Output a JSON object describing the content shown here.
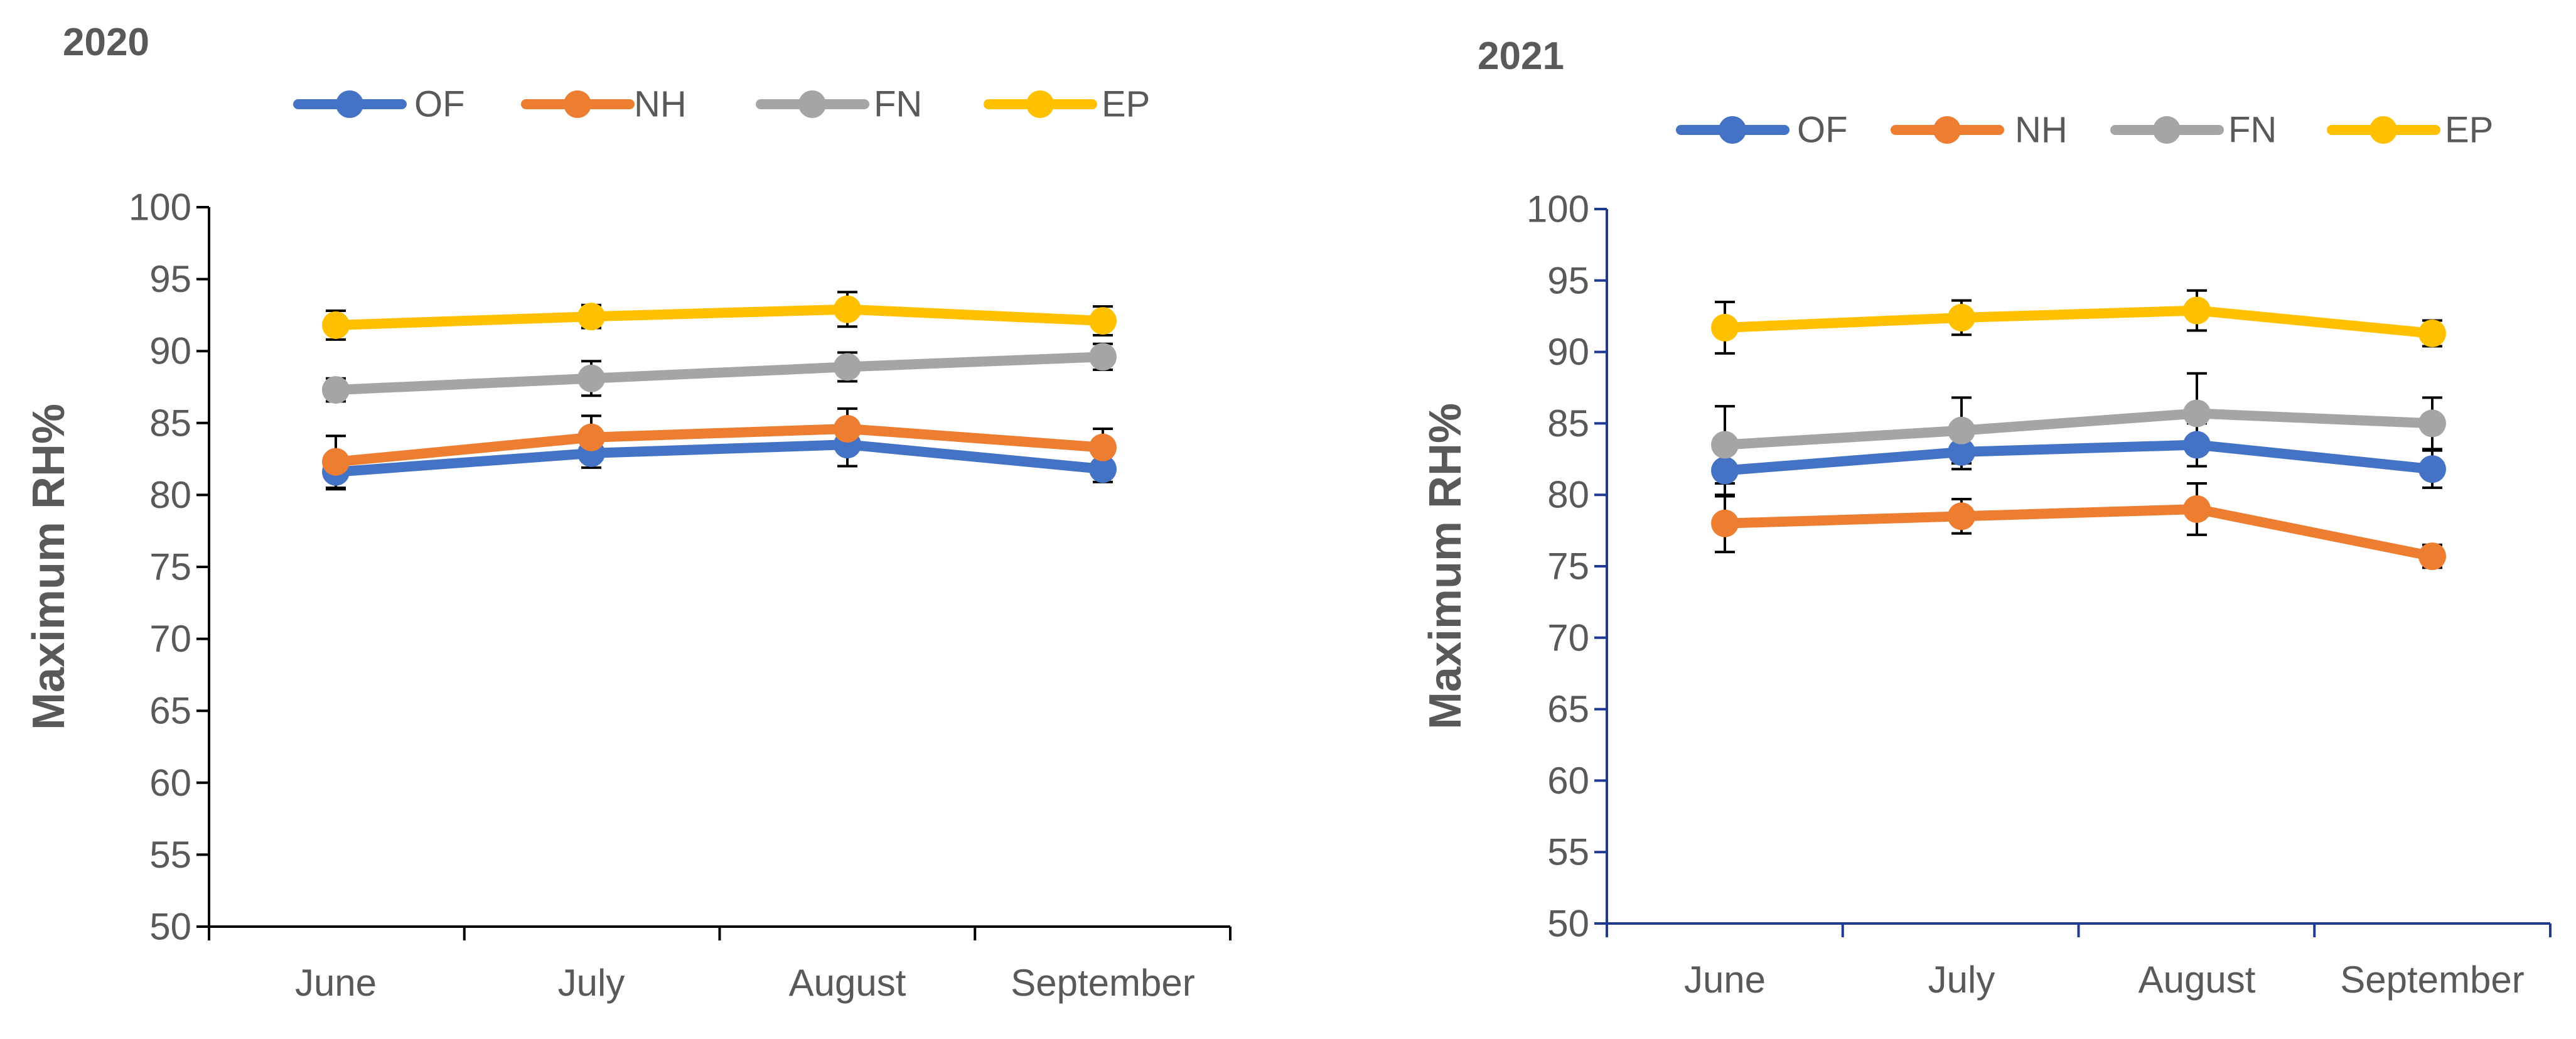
{
  "chart_data": [
    {
      "type": "line",
      "title": "2020",
      "xlabel": "",
      "ylabel": "Maximum RH%",
      "categories": [
        "June",
        "July",
        "August",
        "September"
      ],
      "ylim": [
        50,
        100
      ],
      "yticks": [
        50,
        55,
        60,
        65,
        70,
        75,
        80,
        85,
        90,
        95,
        100
      ],
      "grid": false,
      "legend": "top",
      "axis_color": "#000000",
      "series": [
        {
          "name": "OF",
          "color": "#4472C4",
          "values": [
            81.6,
            82.9,
            83.5,
            81.8
          ],
          "errors": [
            1.2,
            1.0,
            1.5,
            0.9
          ]
        },
        {
          "name": "NH",
          "color": "#ED7D31",
          "values": [
            82.3,
            84.0,
            84.6,
            83.3
          ],
          "errors": [
            1.8,
            1.5,
            1.4,
            1.3
          ]
        },
        {
          "name": "FN",
          "color": "#A5A5A5",
          "values": [
            87.3,
            88.1,
            88.9,
            89.6
          ],
          "errors": [
            0.8,
            1.2,
            1.0,
            0.9
          ]
        },
        {
          "name": "EP",
          "color": "#FFC000",
          "values": [
            91.8,
            92.4,
            92.9,
            92.1
          ],
          "errors": [
            1.0,
            0.8,
            1.2,
            1.0
          ]
        }
      ]
    },
    {
      "type": "line",
      "title": "2021",
      "xlabel": "",
      "ylabel": "Maximum RH%",
      "categories": [
        "June",
        "July",
        "August",
        "September"
      ],
      "ylim": [
        50,
        100
      ],
      "yticks": [
        50,
        55,
        60,
        65,
        70,
        75,
        80,
        85,
        90,
        95,
        100
      ],
      "grid": false,
      "legend": "top",
      "axis_color": "#1F3A93",
      "series": [
        {
          "name": "OF",
          "color": "#4472C4",
          "values": [
            81.7,
            83.0,
            83.5,
            81.8
          ],
          "errors": [
            1.8,
            1.2,
            1.5,
            1.3
          ]
        },
        {
          "name": "NH",
          "color": "#ED7D31",
          "values": [
            78.0,
            78.5,
            79.0,
            75.7
          ],
          "errors": [
            2.0,
            1.2,
            1.8,
            0.8
          ]
        },
        {
          "name": "FN",
          "color": "#A5A5A5",
          "values": [
            83.5,
            84.5,
            85.7,
            85.0
          ],
          "errors": [
            2.7,
            2.3,
            2.8,
            1.8
          ]
        },
        {
          "name": "EP",
          "color": "#FFC000",
          "values": [
            91.7,
            92.4,
            92.9,
            91.3
          ],
          "errors": [
            1.8,
            1.2,
            1.4,
            0.9
          ]
        }
      ]
    }
  ]
}
